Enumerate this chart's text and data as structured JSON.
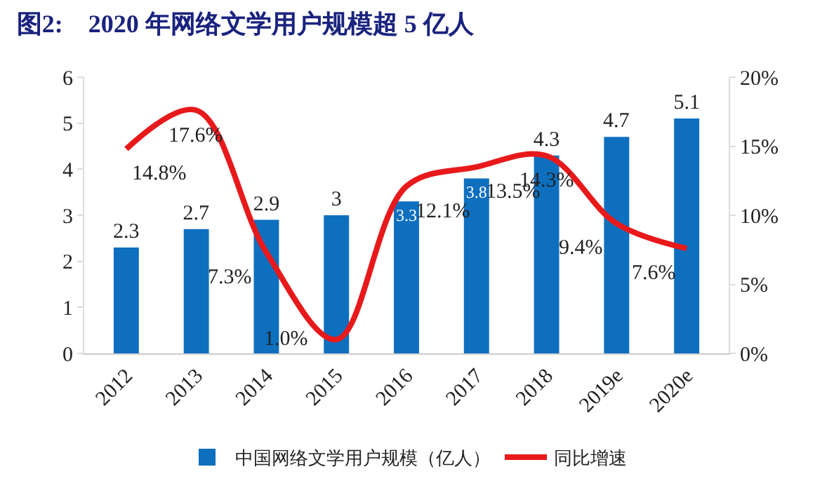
{
  "chart_data": {
    "type": "bar",
    "title": "图2:    2020 年网络文学用户规模超 5 亿人",
    "categories": [
      "2012",
      "2013",
      "2014",
      "2015",
      "2016",
      "2017",
      "2018",
      "2019e",
      "2020e"
    ],
    "series": [
      {
        "name": "中国网络文学用户规模（亿人）",
        "color": "#0e6fbf",
        "values": [
          2.3,
          2.7,
          2.9,
          3,
          3.3,
          3.8,
          4.3,
          4.7,
          5.1
        ],
        "value_labels": [
          "2.3",
          "2.7",
          "2.9",
          "3",
          "3.3",
          "3.8",
          "4.3",
          "4.7",
          "5.1"
        ]
      },
      {
        "name": "同比增速",
        "type": "line",
        "axis": "y2",
        "color": "#e8191b",
        "values": [
          14.8,
          17.6,
          7.3,
          1.0,
          12.1,
          13.5,
          14.3,
          9.4,
          7.6
        ],
        "value_labels": [
          "14.8%",
          "17.6%",
          "7.3%",
          "1.0%",
          "12.1%",
          "13.5%",
          "14.3%",
          "9.4%",
          "7.6%"
        ]
      }
    ],
    "ylim": [
      0,
      6
    ],
    "yticks": [
      0,
      1,
      2,
      3,
      4,
      5,
      6
    ],
    "y2lim": [
      0,
      20
    ],
    "y2ticks": [
      {
        "value": 0,
        "label": "0%"
      },
      {
        "value": 5,
        "label": "5%"
      },
      {
        "value": 10,
        "label": "10%"
      },
      {
        "value": 15,
        "label": "15%"
      },
      {
        "value": 20,
        "label": "20%"
      }
    ],
    "grid": false,
    "legend": "bottom",
    "marker": "none",
    "line_style": "solid"
  }
}
